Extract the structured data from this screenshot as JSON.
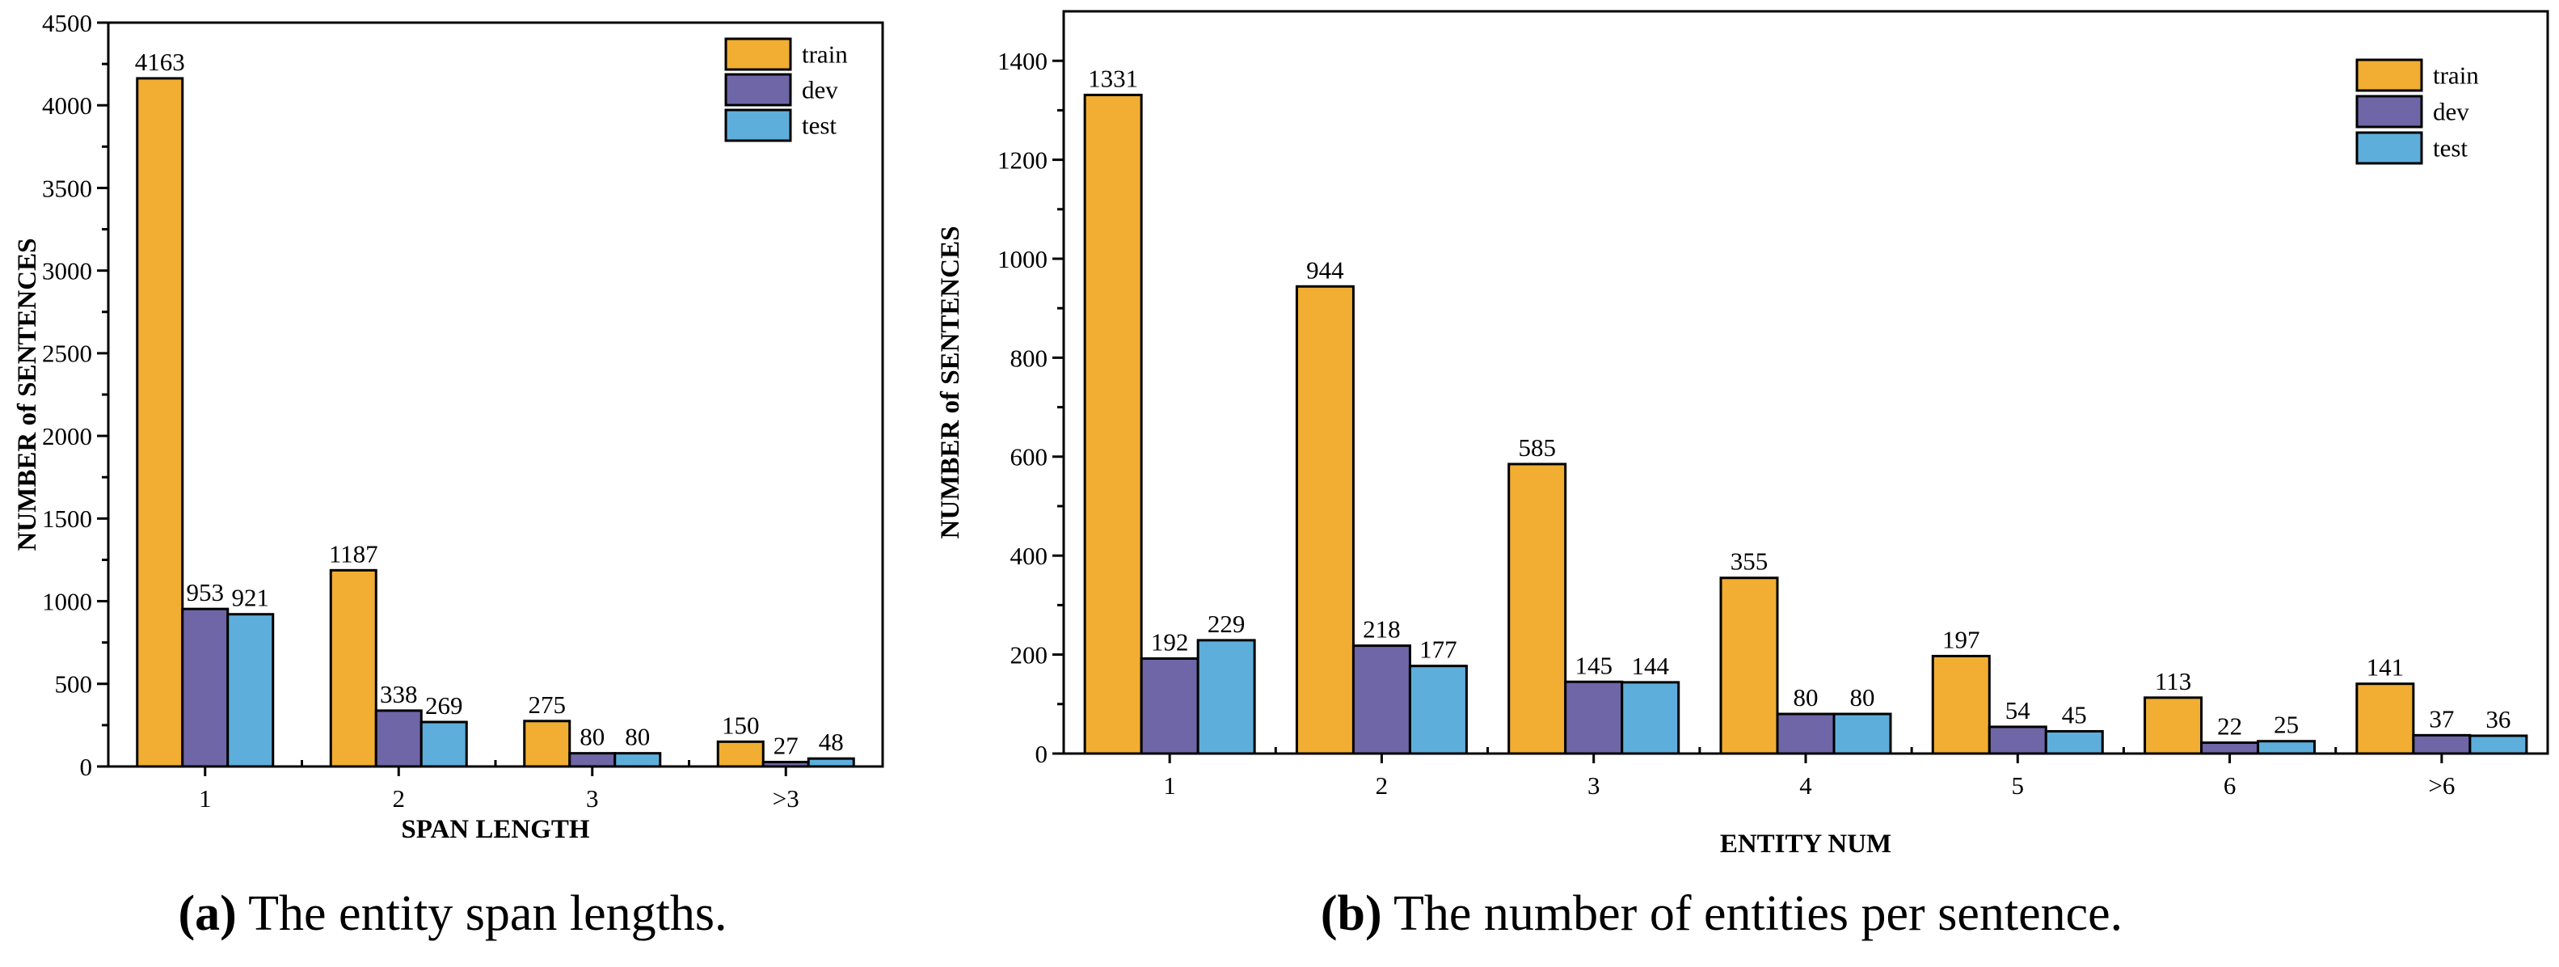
{
  "colors": {
    "train": "#f2ae32",
    "dev": "#6e66a6",
    "test": "#5eaedb",
    "edge": "#000000",
    "text": "#000000"
  },
  "chart_data": [
    {
      "id": "a",
      "type": "bar",
      "caption_label": "(a)",
      "caption_text": "The entity span lengths.",
      "title": "",
      "xlabel": "SPAN LENGTH",
      "ylabel": "NUMBER of SENTENCES",
      "categories": [
        "1",
        "2",
        "3",
        ">3"
      ],
      "series": [
        {
          "name": "train",
          "values": [
            4163,
            1187,
            275,
            150
          ]
        },
        {
          "name": "dev",
          "values": [
            953,
            338,
            80,
            27
          ]
        },
        {
          "name": "test",
          "values": [
            921,
            269,
            80,
            48
          ]
        }
      ],
      "ylim": [
        0,
        4500
      ],
      "yticks": [
        0,
        500,
        1000,
        1500,
        2000,
        2500,
        3000,
        3500,
        4000,
        4500
      ],
      "grid": false,
      "legend": "top-right"
    },
    {
      "id": "b",
      "type": "bar",
      "caption_label": "(b)",
      "caption_text": "The number of entities per sentence.",
      "title": "",
      "xlabel": "ENTITY NUM",
      "ylabel": "NUMBER of SENTENCES",
      "categories": [
        "1",
        "2",
        "3",
        "4",
        "5",
        "6",
        ">6"
      ],
      "series": [
        {
          "name": "train",
          "values": [
            1331,
            944,
            585,
            355,
            197,
            113,
            141
          ]
        },
        {
          "name": "dev",
          "values": [
            192,
            218,
            145,
            80,
            54,
            22,
            37
          ]
        },
        {
          "name": "test",
          "values": [
            229,
            177,
            144,
            80,
            45,
            25,
            36
          ]
        }
      ],
      "ylim": [
        0,
        1500
      ],
      "yticks": [
        0,
        200,
        400,
        600,
        800,
        1000,
        1200,
        1400
      ],
      "grid": false,
      "legend": "top-right"
    }
  ]
}
